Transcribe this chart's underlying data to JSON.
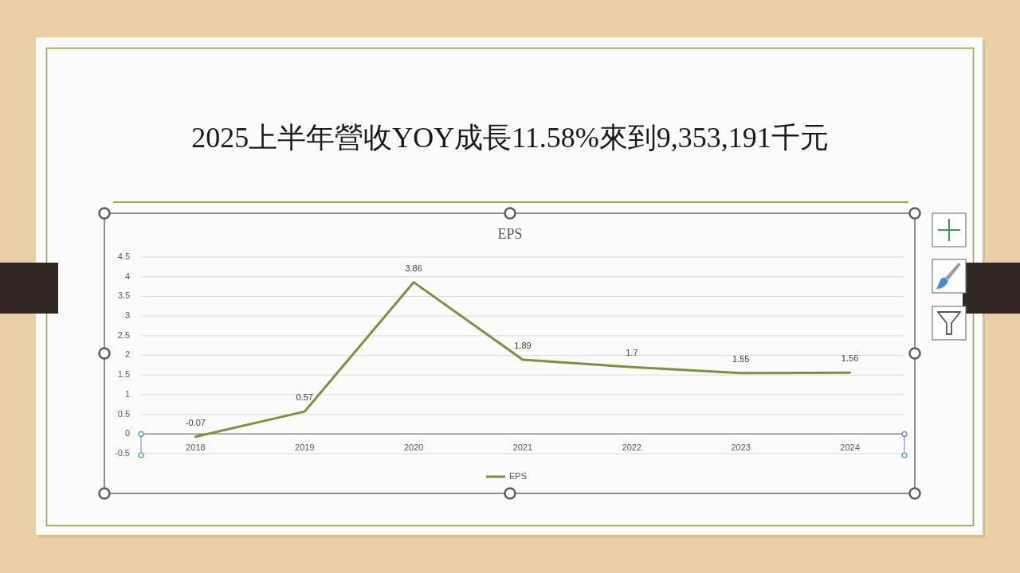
{
  "chart_data": {
    "type": "line",
    "title": "2025上半年營收YOY成長11.58%來到9,353,191千元",
    "subtitle": "EPS",
    "categories": [
      "2018",
      "2019",
      "2020",
      "2021",
      "2022",
      "2023",
      "2024"
    ],
    "series": [
      {
        "name": "EPS",
        "color": "#77933c",
        "values": [
          -0.07,
          0.57,
          3.86,
          1.89,
          1.7,
          1.55,
          1.56
        ]
      }
    ],
    "ylim": [
      -0.5,
      4.5
    ],
    "yticks": [
      -0.5,
      0,
      0.5,
      1,
      1.5,
      2,
      2.5,
      3,
      3.5,
      4,
      4.5
    ],
    "grid": "y",
    "legend": "bottom",
    "data_labels": true
  }
}
